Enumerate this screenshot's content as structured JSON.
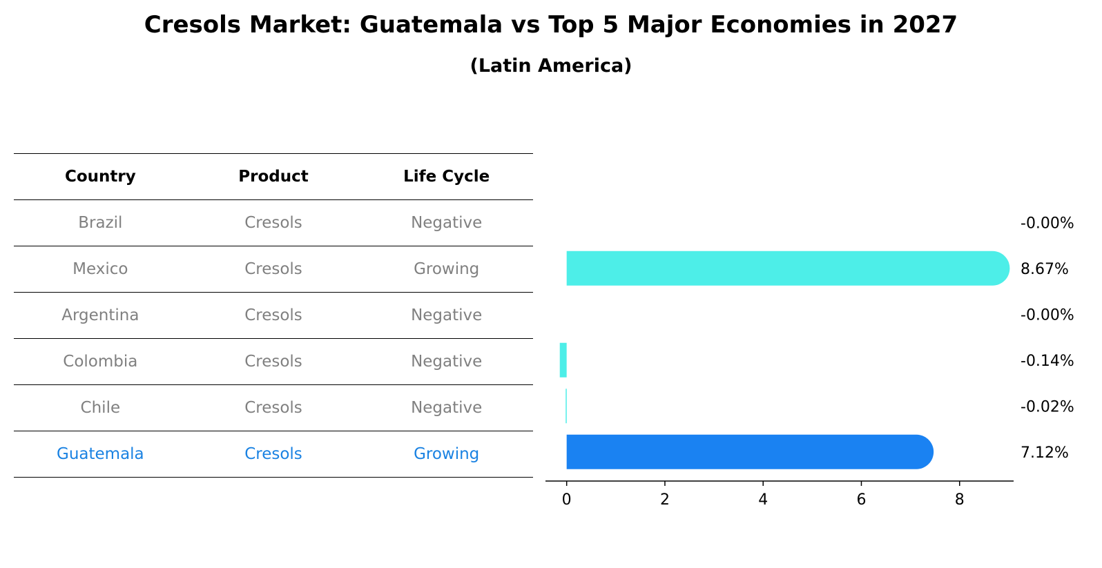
{
  "title": "Cresols Market: Guatemala vs Top 5 Major Economies in 2027",
  "subtitle": "(Latin America)",
  "table": {
    "headers": [
      "Country",
      "Product",
      "Life Cycle"
    ],
    "rows": [
      {
        "country": "Brazil",
        "product": "Cresols",
        "life_cycle": "Negative"
      },
      {
        "country": "Mexico",
        "product": "Cresols",
        "life_cycle": "Growing"
      },
      {
        "country": "Argentina",
        "product": "Cresols",
        "life_cycle": "Negative"
      },
      {
        "country": "Colombia",
        "product": "Cresols",
        "life_cycle": "Negative"
      },
      {
        "country": "Chile",
        "product": "Cresols",
        "life_cycle": "Negative"
      },
      {
        "country": "Guatemala",
        "product": "Cresols",
        "life_cycle": "Growing"
      }
    ],
    "highlight_row": "Guatemala"
  },
  "colors": {
    "bar": "#4deee8",
    "highlight_bar": "#1a82f2",
    "row_text": "#808080",
    "highlight_text": "#1a82e2"
  },
  "chart_data": {
    "type": "bar",
    "orientation": "horizontal",
    "categories": [
      "Brazil",
      "Mexico",
      "Argentina",
      "Colombia",
      "Chile",
      "Guatemala"
    ],
    "values": [
      -0.0,
      8.67,
      -0.0,
      -0.14,
      -0.02,
      7.12
    ],
    "value_labels": [
      "-0.00%",
      "8.67%",
      "-0.00%",
      "-0.14%",
      "-0.02%",
      "7.12%"
    ],
    "x_ticks": [
      0,
      2,
      4,
      6,
      8
    ],
    "xlim": [
      -0.6,
      9.1
    ],
    "highlight": "Guatemala",
    "grid": false
  }
}
